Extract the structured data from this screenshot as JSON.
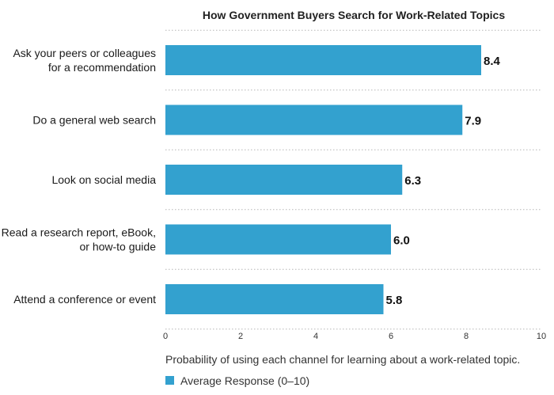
{
  "chart_data": {
    "type": "bar",
    "orientation": "horizontal",
    "title": "How Government Buyers Search for Work-Related Topics",
    "xlabel": "Probability of using each channel for learning about a work-related topic.",
    "ylabel": "",
    "xlim": [
      0,
      10
    ],
    "xticks": [
      "0",
      "2",
      "4",
      "6",
      "8",
      "10"
    ],
    "grid": "horizontal dotted lines between categories",
    "legend_position": "bottom-left",
    "color": "#33a1cf",
    "categories": [
      [
        "Ask your peers or colleagues",
        "for a recommendation"
      ],
      [
        "Do a general web search"
      ],
      [
        "Look on social media"
      ],
      [
        "Read a research report, eBook,",
        "or how-to guide"
      ],
      [
        "Attend a conference or event"
      ]
    ],
    "series": [
      {
        "name": "Average Response (0–10)",
        "values": [
          8.4,
          7.9,
          6.3,
          6.0,
          5.8
        ]
      }
    ],
    "value_labels": [
      "8.4",
      "7.9",
      "6.3",
      "6.0",
      "5.8"
    ]
  }
}
